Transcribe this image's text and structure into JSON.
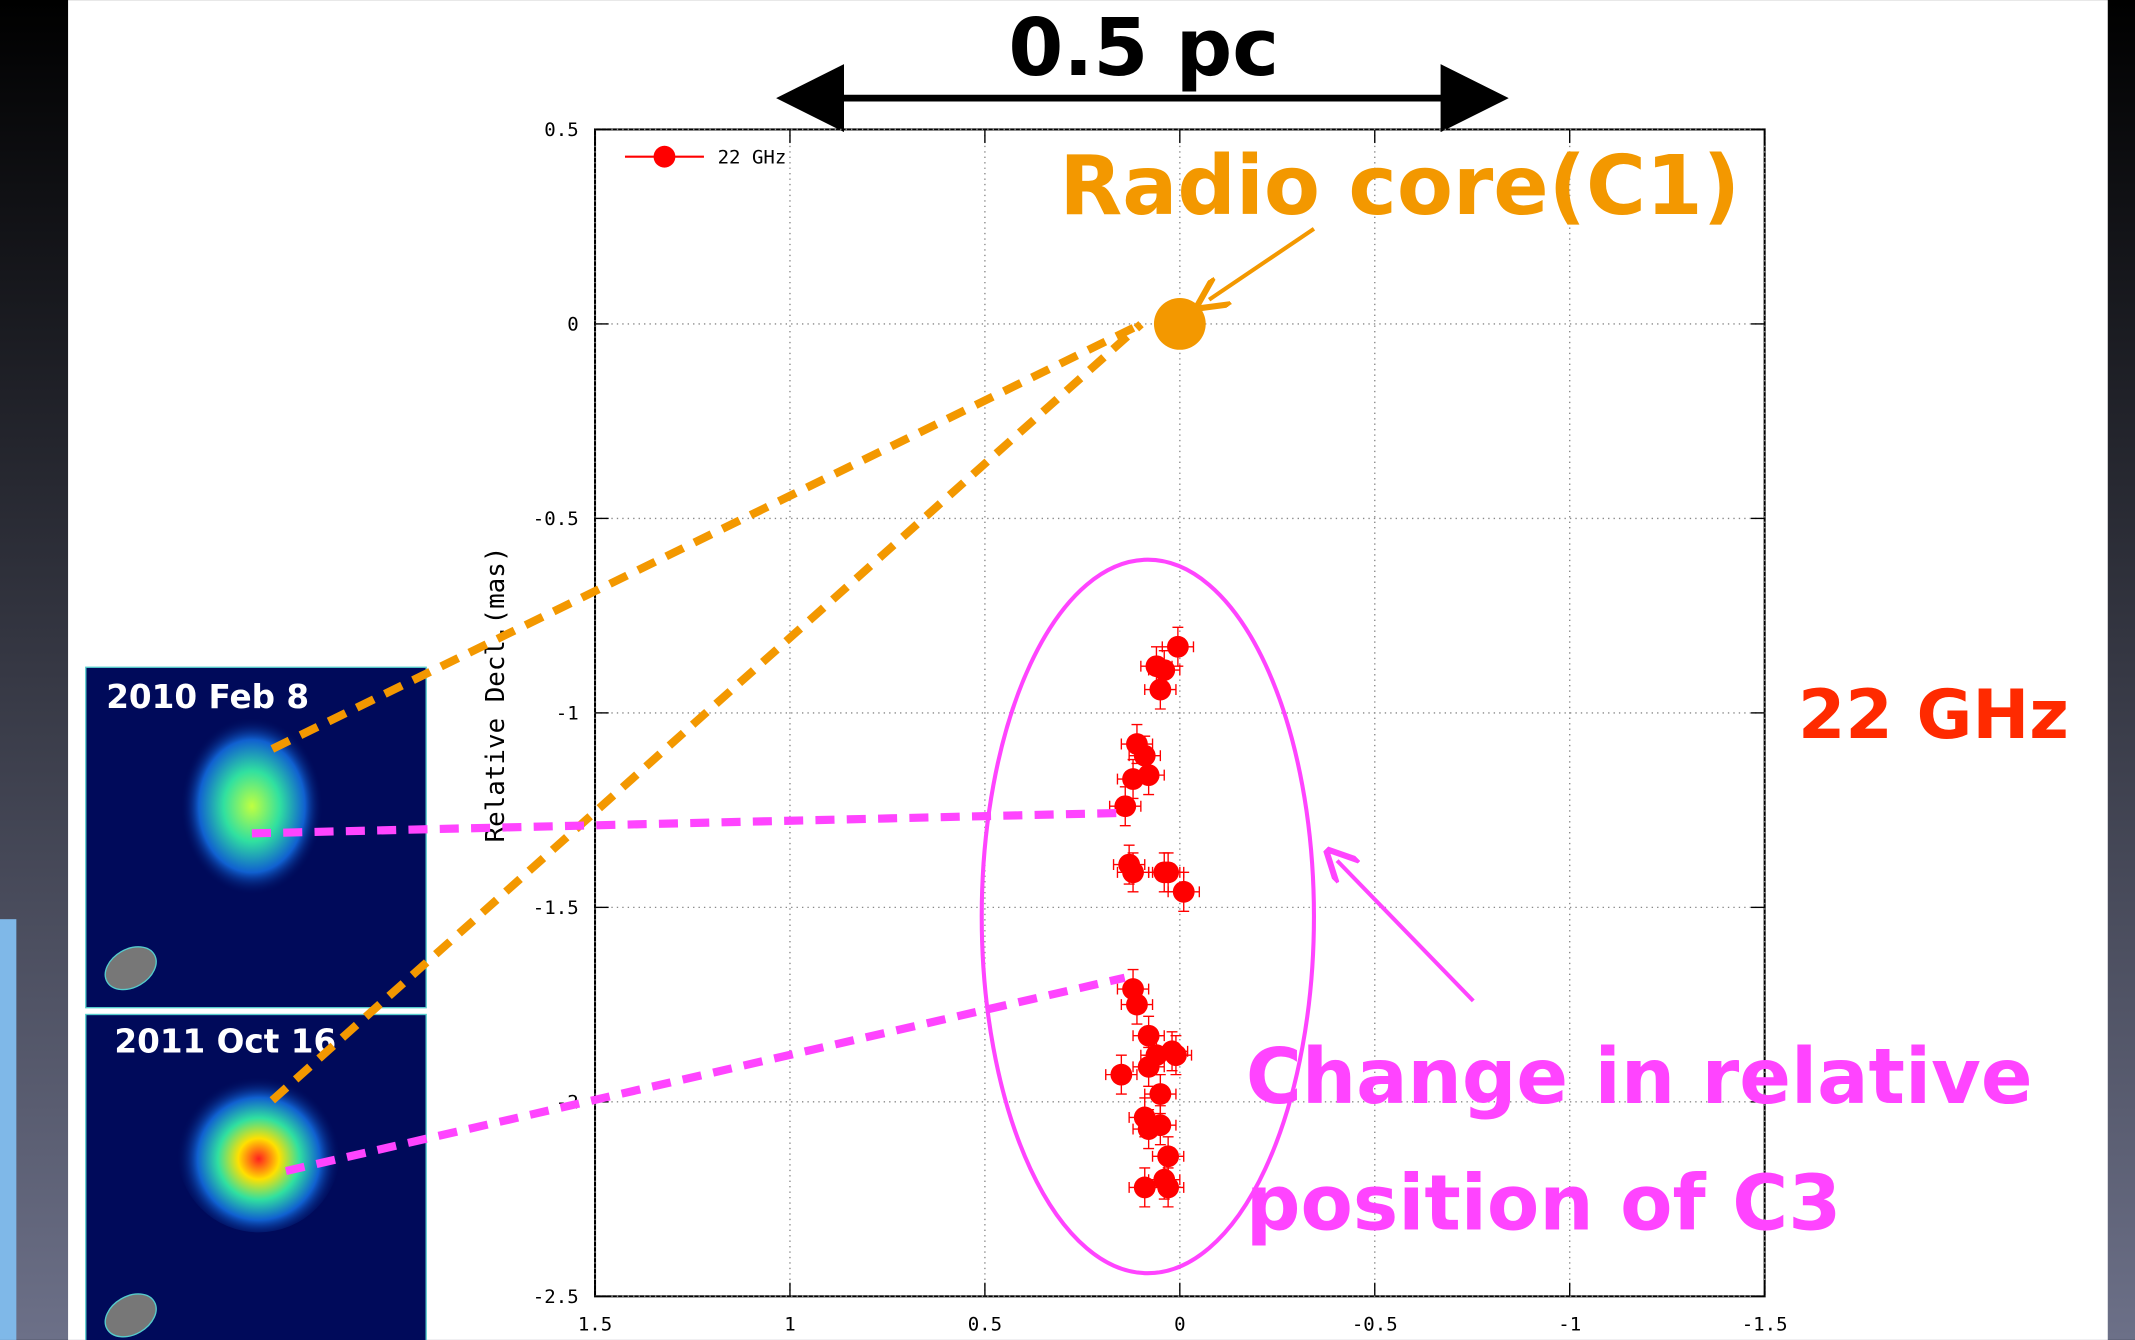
{
  "chart_data": {
    "type": "scatter",
    "scale_bar": "0.5 pc",
    "ylabel": "Relative Decl.(mas)",
    "xlim": [
      1.5,
      -1.5
    ],
    "ylim": [
      -2.5,
      0.5
    ],
    "xticks": [
      1.5,
      1,
      0.5,
      0,
      -0.5,
      -1,
      -1.5
    ],
    "yticks": [
      0.5,
      0,
      -0.5,
      -1,
      -1.5,
      -2,
      -2.5
    ],
    "grid": true,
    "legend": "top-left",
    "series": [
      {
        "name": "22 GHz",
        "color": "#ff0000",
        "x": [
          0.005,
          0.06,
          0.04,
          0.05,
          0.11,
          0.09,
          0.08,
          0.12,
          0.14,
          0.12,
          0.13,
          0.04,
          0.03,
          -0.01,
          0.12,
          0.11,
          0.08,
          0.06,
          0.02,
          0.01,
          0.15,
          0.08,
          0.05,
          0.09,
          0.05,
          0.08,
          0.03,
          0.04,
          0.09,
          0.03
        ],
        "y": [
          -0.83,
          -0.88,
          -0.89,
          -0.94,
          -1.08,
          -1.11,
          -1.16,
          -1.17,
          -1.24,
          -1.41,
          -1.39,
          -1.41,
          -1.41,
          -1.46,
          -1.71,
          -1.75,
          -1.83,
          -1.88,
          -1.87,
          -1.88,
          -1.93,
          -1.91,
          -1.98,
          -2.04,
          -2.06,
          -2.07,
          -2.14,
          -2.2,
          -2.22,
          -2.22
        ],
        "xerr": 0.04,
        "yerr": 0.05
      }
    ],
    "core": {
      "label": "Radio core(C1)",
      "x": 0,
      "y": 0,
      "color": "#f39800"
    },
    "side_label": "22 GHz",
    "annotation": [
      "Change in relative",
      "position of C3"
    ],
    "insets": [
      {
        "label": "2010 Feb 8"
      },
      {
        "label": "2011 Oct 16"
      }
    ]
  }
}
